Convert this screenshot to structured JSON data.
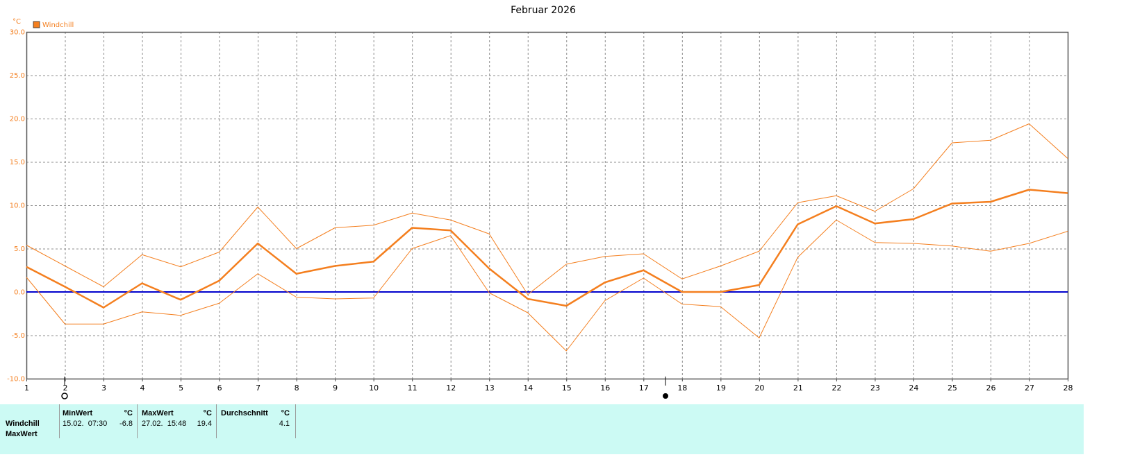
{
  "chart_data": {
    "type": "line",
    "title": "Februar 2026",
    "y_unit": "°C",
    "x": [
      1,
      2,
      3,
      4,
      5,
      6,
      7,
      8,
      9,
      10,
      11,
      12,
      13,
      14,
      15,
      16,
      17,
      18,
      19,
      20,
      21,
      22,
      23,
      24,
      25,
      26,
      27,
      28
    ],
    "xlim": [
      1,
      28
    ],
    "xticks": [
      1,
      2,
      3,
      4,
      5,
      6,
      7,
      8,
      9,
      10,
      11,
      12,
      13,
      14,
      15,
      16,
      17,
      18,
      19,
      20,
      21,
      22,
      23,
      24,
      25,
      26,
      27,
      28
    ],
    "ylim": [
      -10,
      30
    ],
    "yticks": [
      {
        "value": -10,
        "label": "-10.0"
      },
      {
        "value": -5,
        "label": "-5.0"
      },
      {
        "value": 0,
        "label": "0.0"
      },
      {
        "value": 5,
        "label": "5.0"
      },
      {
        "value": 10,
        "label": "10.0"
      },
      {
        "value": 15,
        "label": "15.0"
      },
      {
        "value": 20,
        "label": "20.0"
      },
      {
        "value": 25,
        "label": "25.0"
      },
      {
        "value": 30,
        "label": "30.0"
      }
    ],
    "grid": true,
    "zero_line_color": "#0000cc",
    "series": [
      {
        "name": "Windchill",
        "color": "#f47f1f",
        "width": 2.5,
        "values": [
          2.9,
          0.6,
          -1.8,
          1.0,
          -0.9,
          1.3,
          5.6,
          2.1,
          3.0,
          3.5,
          7.4,
          7.1,
          2.7,
          -0.8,
          -1.6,
          1.1,
          2.5,
          0.0,
          0.0,
          0.8,
          7.8,
          9.9,
          7.9,
          8.4,
          10.2,
          10.4,
          11.8,
          11.4
        ]
      },
      {
        "color": "#f47f1f",
        "width": 1,
        "values": [
          5.4,
          3.0,
          0.6,
          4.3,
          2.9,
          4.6,
          9.8,
          5.0,
          7.4,
          7.7,
          9.1,
          8.3,
          6.7,
          -0.3,
          3.2,
          4.1,
          4.4,
          1.5,
          3.0,
          4.7,
          10.3,
          11.1,
          9.3,
          11.9,
          17.2,
          17.5,
          19.4,
          15.4
        ]
      },
      {
        "color": "#f47f1f",
        "width": 1,
        "values": [
          1.7,
          -3.7,
          -3.7,
          -2.3,
          -2.7,
          -1.3,
          2.1,
          -0.6,
          -0.8,
          -0.7,
          5.0,
          6.5,
          -0.1,
          -2.4,
          -6.8,
          -1.0,
          1.6,
          -1.4,
          -1.7,
          -5.3,
          4.0,
          8.3,
          5.7,
          5.6,
          5.3,
          4.7,
          5.6,
          7.0
        ]
      }
    ]
  },
  "table": {
    "header": [
      "MinWert",
      "°C",
      "MaxWert",
      "°C",
      "Durchschnitt",
      "°C"
    ],
    "rows": [
      [
        "Windchill",
        "15.02.  07:30",
        -6.8,
        "27.02.  15:48",
        19.4,
        4.1
      ],
      [
        "MaxWert"
      ]
    ]
  }
}
